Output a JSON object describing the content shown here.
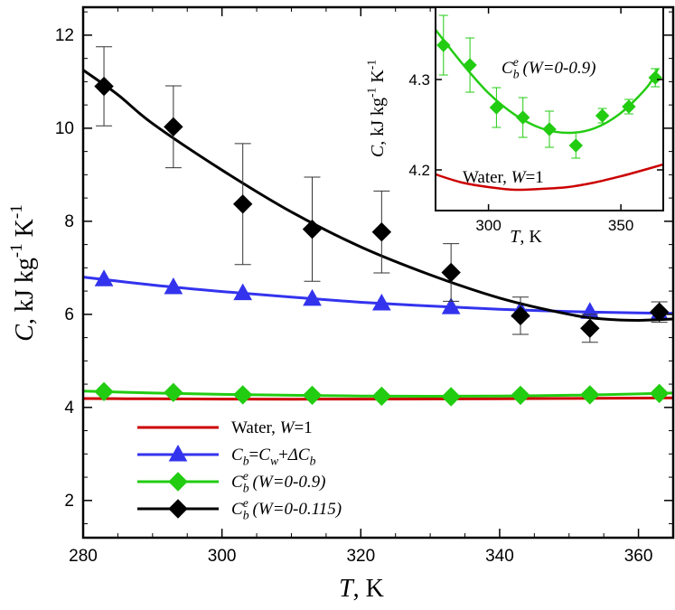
{
  "chart_data": [
    {
      "type": "line",
      "xlim": [
        280,
        365
      ],
      "ylim": [
        1.2,
        12.6
      ],
      "xticks": [
        280,
        300,
        320,
        340,
        360
      ],
      "yticks": [
        2,
        4,
        6,
        8,
        10,
        12
      ],
      "xlabel": {
        "italic": "T",
        "rest": ", K"
      },
      "ylabel": {
        "italic": "C",
        "rest": ", kJ kg",
        "sup1": "-1",
        "mid": " K",
        "sup2": "-1"
      },
      "series": [
        {
          "name": "Water, W=1",
          "color": "#cc0000",
          "marker": "none",
          "curve": {
            "x": [
              280,
              290,
              300,
              310,
              320,
              330,
              340,
              350,
              360,
              365
            ],
            "y": [
              4.19,
              4.185,
              4.18,
              4.178,
              4.179,
              4.181,
              4.186,
              4.193,
              4.201,
              4.205
            ]
          }
        },
        {
          "name": "Cb=Cw+ΔCb",
          "color": "#3333ee",
          "marker": "triangle",
          "points": {
            "x": [
              283,
              293,
              303,
              313,
              323,
              333,
              343,
              353,
              363
            ],
            "y": [
              6.75,
              6.58,
              6.45,
              6.33,
              6.23,
              6.15,
              6.08,
              6.05,
              6.02
            ]
          },
          "curve": {
            "x": [
              280,
              290,
              300,
              310,
              320,
              330,
              340,
              350,
              360,
              365
            ],
            "y": [
              6.8,
              6.63,
              6.49,
              6.37,
              6.26,
              6.18,
              6.11,
              6.06,
              6.03,
              6.02
            ]
          }
        },
        {
          "name": "Cbe (W=0-0.9)",
          "color": "#22cc11",
          "marker": "diamond",
          "points": {
            "x": [
              283,
              293,
              303,
              313,
              323,
              333,
              343,
              353,
              363
            ],
            "y": [
              4.34,
              4.32,
              4.27,
              4.26,
              4.24,
              4.23,
              4.26,
              4.27,
              4.3
            ]
          },
          "curve": {
            "x": [
              280,
              290,
              300,
              310,
              320,
              330,
              340,
              350,
              360,
              365
            ],
            "y": [
              4.35,
              4.31,
              4.28,
              4.26,
              4.245,
              4.24,
              4.245,
              4.26,
              4.29,
              4.31
            ]
          }
        },
        {
          "name": "Cbe (W=0-0.115)",
          "color": "#000000",
          "marker": "diamond",
          "points": {
            "x": [
              283,
              293,
              303,
              313,
              323,
              333,
              343,
              353,
              363
            ],
            "y": [
              10.9,
              10.03,
              8.37,
              7.83,
              7.77,
              6.9,
              5.97,
              5.7,
              6.05
            ]
          },
          "errors": [
            0.85,
            0.88,
            1.3,
            1.12,
            0.88,
            0.62,
            0.4,
            0.3,
            0.22
          ],
          "curve": {
            "x": [
              280,
              285,
              290,
              300,
              310,
              320,
              330,
              340,
              350,
              355,
              360,
              365
            ],
            "y": [
              11.25,
              10.72,
              10.1,
              9.1,
              8.2,
              7.45,
              6.85,
              6.35,
              6.0,
              5.9,
              5.87,
              5.9
            ]
          }
        }
      ],
      "legend": {
        "placement": "bottom-left",
        "entries": [
          {
            "parts": [
              {
                "t": "Water, ",
                "i": false
              },
              {
                "t": "W",
                "i": true
              },
              {
                "t": "=1",
                "i": false
              }
            ]
          },
          {
            "parts": [
              {
                "t": "C",
                "i": true
              },
              {
                "t": "b",
                "i": true,
                "sub": true
              },
              {
                "t": "=",
                "i": false
              },
              {
                "t": "C",
                "i": true
              },
              {
                "t": "w",
                "i": true,
                "sub": true
              },
              {
                "t": "+",
                "i": false
              },
              {
                "t": "ΔC",
                "i": true
              },
              {
                "t": "b",
                "i": true,
                "sub": true
              }
            ]
          },
          {
            "parts": [
              {
                "t": "C",
                "i": true
              },
              {
                "t": "b",
                "i": true,
                "sub": true
              },
              {
                "t": "e",
                "i": true,
                "sup": true
              },
              {
                "t": " (",
                "i": true
              },
              {
                "t": "W",
                "i": true
              },
              {
                "t": "=0-0.9)",
                "i": true
              }
            ]
          },
          {
            "parts": [
              {
                "t": "C",
                "i": true
              },
              {
                "t": "b",
                "i": true,
                "sub": true
              },
              {
                "t": "e",
                "i": true,
                "sup": true
              },
              {
                "t": " (",
                "i": true
              },
              {
                "t": "W",
                "i": true
              },
              {
                "t": "=0-0.115)",
                "i": true
              }
            ]
          }
        ]
      }
    },
    {
      "type": "line",
      "inset": true,
      "xlim": [
        280,
        366
      ],
      "ylim": [
        4.155,
        4.38
      ],
      "xticks": [
        300,
        350
      ],
      "yticks": [
        4.2,
        4.3
      ],
      "xlabel": {
        "italic": "T",
        "rest": ", K"
      },
      "ylabel": {
        "italic": "C",
        "rest": ", kJ kg",
        "sup1": "-1",
        "mid": " K",
        "sup2": "-1"
      },
      "annotations": [
        {
          "parts": [
            {
              "t": "C",
              "i": true
            },
            {
              "t": "b",
              "i": true,
              "sub": true
            },
            {
              "t": "e",
              "i": true,
              "sup": true
            },
            {
              "t": " (",
              "i": true
            },
            {
              "t": "W",
              "i": true
            },
            {
              "t": "=0-0.9)",
              "i": true
            }
          ]
        },
        {
          "parts": [
            {
              "t": "Water, ",
              "i": false
            },
            {
              "t": "W",
              "i": true
            },
            {
              "t": "=1",
              "i": false
            }
          ]
        }
      ],
      "series": [
        {
          "name": "Cbe (W=0-0.9)",
          "color": "#22cc11",
          "marker": "diamond",
          "points": {
            "x": [
              283,
              293,
              303,
              313,
              323,
              333,
              343,
              353,
              363
            ],
            "y": [
              4.338,
              4.316,
              4.269,
              4.258,
              4.245,
              4.227,
              4.26,
              4.27,
              4.302
            ]
          },
          "errors": [
            0.033,
            0.03,
            0.022,
            0.022,
            0.02,
            0.014,
            0.008,
            0.008,
            0.01
          ],
          "curve": {
            "x": [
              280,
              290,
              300,
              310,
              320,
              330,
              340,
              350,
              360,
              364
            ],
            "y": [
              4.355,
              4.318,
              4.285,
              4.261,
              4.246,
              4.241,
              4.246,
              4.263,
              4.292,
              4.312
            ]
          }
        },
        {
          "name": "Water, W=1",
          "color": "#cc0000",
          "marker": "none",
          "curve": {
            "x": [
              280,
              290,
              300,
              310,
              320,
              330,
              340,
              350,
              360,
              366
            ],
            "y": [
              4.195,
              4.186,
              4.181,
              4.178,
              4.179,
              4.181,
              4.186,
              4.193,
              4.201,
              4.206
            ]
          }
        }
      ]
    }
  ]
}
